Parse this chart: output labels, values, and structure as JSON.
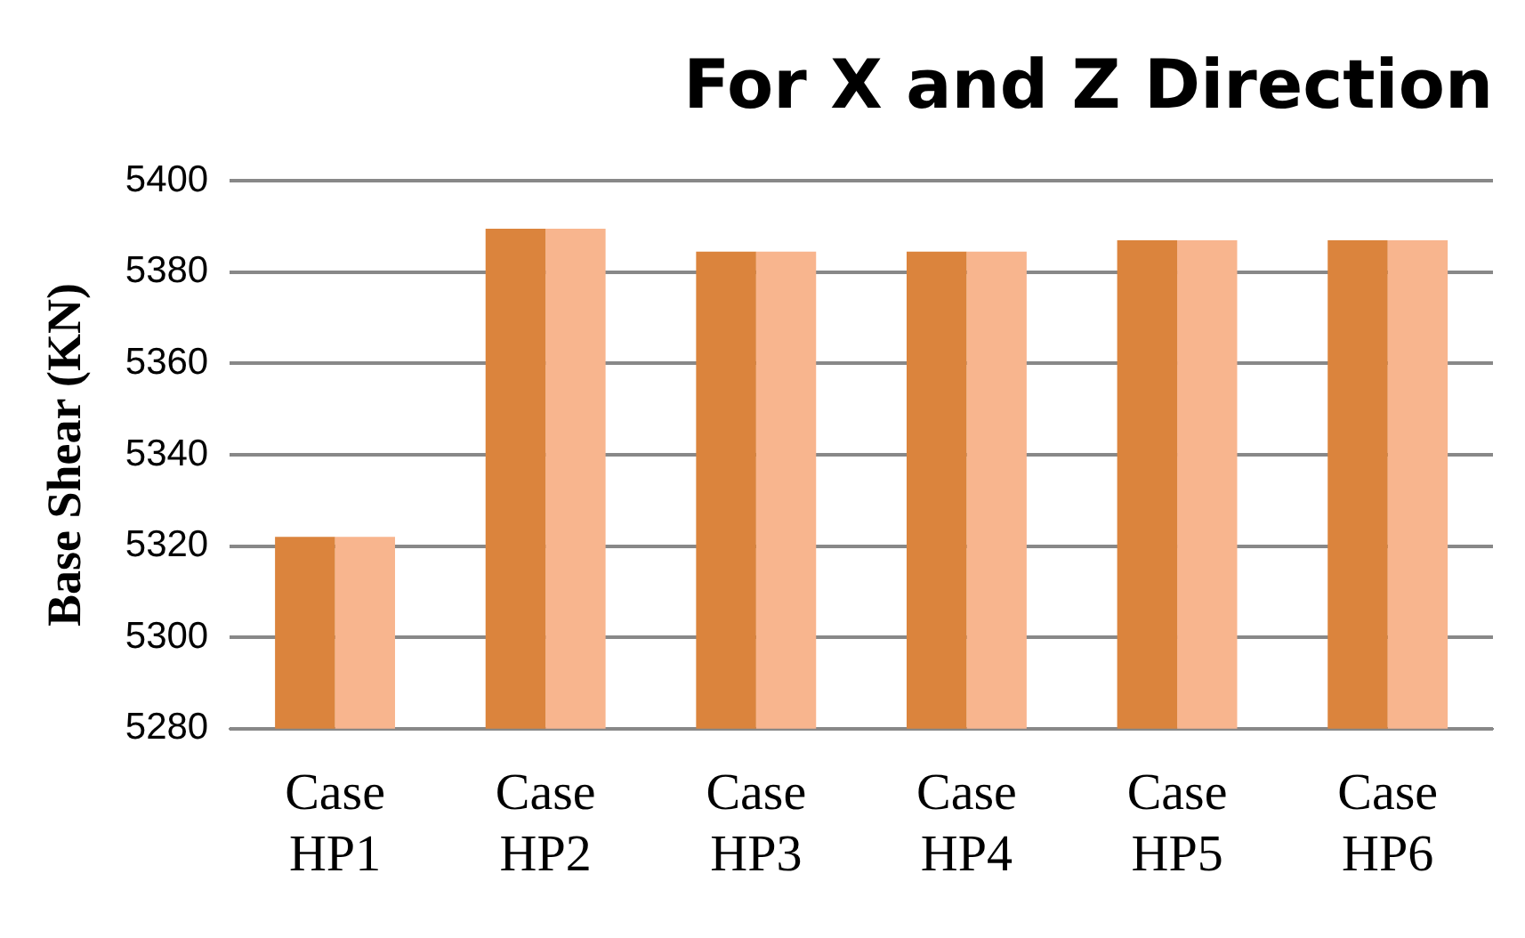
{
  "chart_data": {
    "type": "bar",
    "title": "For X and Z Direction",
    "ylabel": "Base Shear (KN)",
    "categories": [
      "Case HP1",
      "Case HP2",
      "Case HP3",
      "Case HP4",
      "Case HP5",
      "Case HP6"
    ],
    "series": [
      {
        "color": "#db843d",
        "values": [
          5322,
          5389.5,
          5384.5,
          5384.5,
          5387,
          5387
        ]
      },
      {
        "color": "#f8b58e",
        "values": [
          5322,
          5389.5,
          5384.5,
          5384.5,
          5387,
          5387
        ]
      }
    ],
    "ylim": [
      5280,
      5400
    ],
    "yticks": [
      5280,
      5300,
      5320,
      5340,
      5360,
      5380,
      5400
    ],
    "grid": "y",
    "legend": false
  }
}
